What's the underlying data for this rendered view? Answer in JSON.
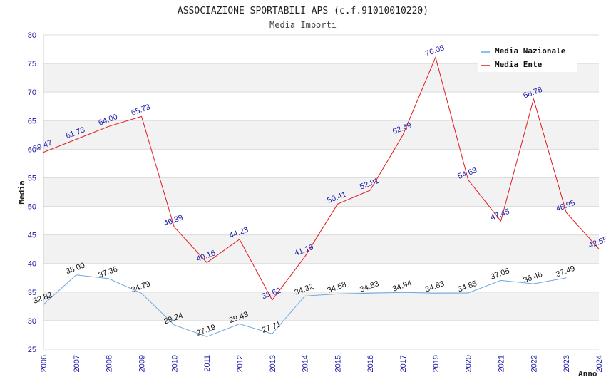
{
  "chart_data": {
    "type": "line",
    "title": "ASSOCIAZIONE SPORTABILI APS (c.f.91010010220)",
    "subtitle": "Media Importi",
    "xlabel": "Anno",
    "ylabel": "Media",
    "ylim": [
      25,
      80
    ],
    "y_ticks": [
      "25",
      "30",
      "35",
      "40",
      "45",
      "50",
      "55",
      "60",
      "65",
      "70",
      "75",
      "80"
    ],
    "x": [
      "2006",
      "2007",
      "2008",
      "2009",
      "2010",
      "2011",
      "2012",
      "2013",
      "2014",
      "2015",
      "2016",
      "2017",
      "2019",
      "2020",
      "2021",
      "2022",
      "2023",
      "2024"
    ],
    "series": [
      {
        "name": "Media Nazionale",
        "color": "#6aa8e0",
        "values": [
          32.82,
          38.0,
          37.36,
          34.79,
          29.24,
          27.19,
          29.43,
          27.71,
          34.32,
          34.68,
          34.83,
          34.94,
          34.83,
          34.85,
          37.05,
          36.46,
          37.49,
          null
        ],
        "labels": [
          "32.82",
          "38.00",
          "37.36",
          "34.79",
          "29.24",
          "27.19",
          "29.43",
          "27.71",
          "34.32",
          "34.68",
          "34.83",
          "34.94",
          "34.83",
          "34.85",
          "37.05",
          "36.46",
          "37.49",
          null
        ]
      },
      {
        "name": "Media Ente",
        "color": "#e31a1c",
        "values": [
          59.47,
          61.73,
          64.0,
          65.73,
          46.39,
          40.16,
          44.23,
          33.62,
          41.19,
          50.41,
          52.81,
          62.49,
          76.08,
          54.63,
          47.45,
          68.78,
          48.95,
          42.55
        ],
        "labels": [
          "59.47",
          "61.73",
          "64.00",
          "65.73",
          "46.39",
          "40.16",
          "44.23",
          "33.62",
          "41.19",
          "50.41",
          "52.81",
          "62.49",
          "76.08",
          "54.63",
          "47.45",
          "68.78",
          "48.95",
          "42.55"
        ]
      }
    ],
    "grid": true,
    "legend_position": "top-right"
  }
}
